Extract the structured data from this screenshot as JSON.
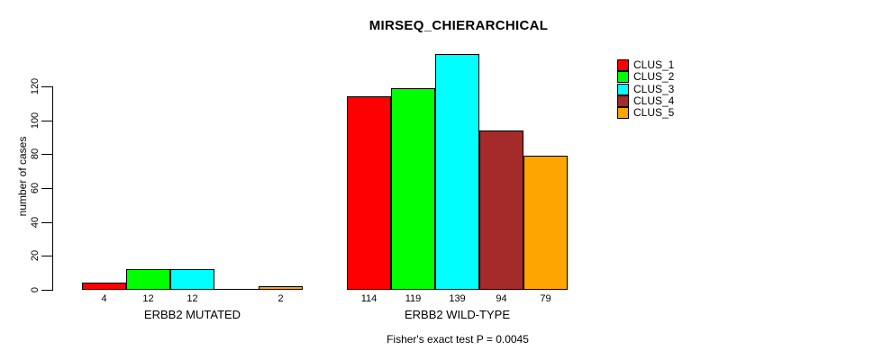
{
  "title": "MIRSEQ_CHIERARCHICAL",
  "y_axis_label": "number of cases",
  "footer_note": "Fisher's exact test P = 0.0045",
  "chart_data": {
    "type": "bar",
    "title": "MIRSEQ_CHIERARCHICAL",
    "ylabel": "number of cases",
    "xlabel": "",
    "annotation": "Fisher's exact test P = 0.0045",
    "ylim": [
      0,
      120
    ],
    "yticks": [
      0,
      20,
      40,
      60,
      80,
      100,
      120
    ],
    "grid": false,
    "legend_position": "top-right",
    "categories": [
      "ERBB2 MUTATED",
      "ERBB2 WILD-TYPE"
    ],
    "series": [
      {
        "name": "CLUS_1",
        "color": "#FF0000",
        "values": [
          4,
          114
        ]
      },
      {
        "name": "CLUS_2",
        "color": "#00FF00",
        "values": [
          12,
          119
        ]
      },
      {
        "name": "CLUS_3",
        "color": "#00FFFF",
        "values": [
          12,
          139
        ]
      },
      {
        "name": "CLUS_4",
        "color": "#A52A2A",
        "values": [
          0,
          94
        ]
      },
      {
        "name": "CLUS_5",
        "color": "#FFA500",
        "values": [
          2,
          79
        ]
      }
    ],
    "bar_value_labels": [
      [
        "4",
        "12",
        "12",
        "",
        "2"
      ],
      [
        "114",
        "119",
        "139",
        "94",
        "79"
      ]
    ]
  }
}
